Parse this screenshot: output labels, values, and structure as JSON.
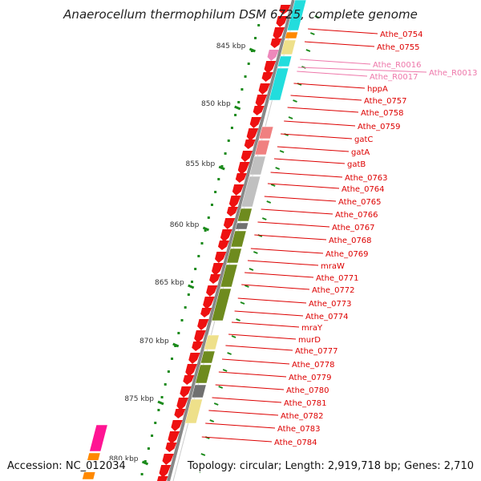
{
  "title": "Anaerocellum thermophilum DSM 6725, complete genome",
  "footer": {
    "accession_label": "Accession:",
    "accession": "NC_012034",
    "summary": "Topology: circular; Length: 2,919,718 bp; Genes: 2,710"
  },
  "colors": {
    "gene": "#ee1111",
    "rna": "#ee88bb",
    "label_gene": "#dd0000",
    "label_rna": "#ee77aa",
    "ruler": "#1a8a1a",
    "backbone": "#888888",
    "cog_green": "#6e8b1e",
    "cog_cyan": "#22dddd",
    "cog_pink": "#f08080",
    "cog_grey": "#c0c0c0",
    "cog_darkgrey": "#707070",
    "cog_khaki": "#eee08a",
    "cog_orange": "#ff8800",
    "cog_magenta": "#ff1493"
  },
  "ruler_ticks": [
    {
      "label": "845 kbp"
    },
    {
      "label": "850 kbp"
    },
    {
      "label": "855 kbp"
    },
    {
      "label": "860 kbp"
    },
    {
      "label": "865 kbp"
    },
    {
      "label": "870 kbp"
    },
    {
      "label": "875 kbp"
    },
    {
      "label": "880 kbp"
    }
  ],
  "gene_labels": [
    {
      "text": "Athe_0754",
      "kind": "gene"
    },
    {
      "text": "Athe_0755",
      "kind": "gene"
    },
    {
      "text": "Athe_R0016",
      "kind": "rna"
    },
    {
      "text": "Athe_R0013",
      "kind": "rna"
    },
    {
      "text": "Athe_R0017",
      "kind": "rna"
    },
    {
      "text": "hppA",
      "kind": "gene"
    },
    {
      "text": "Athe_0757",
      "kind": "gene"
    },
    {
      "text": "Athe_0758",
      "kind": "gene"
    },
    {
      "text": "Athe_0759",
      "kind": "gene"
    },
    {
      "text": "gatC",
      "kind": "gene"
    },
    {
      "text": "gatA",
      "kind": "gene"
    },
    {
      "text": "gatB",
      "kind": "gene"
    },
    {
      "text": "Athe_0763",
      "kind": "gene"
    },
    {
      "text": "Athe_0764",
      "kind": "gene"
    },
    {
      "text": "Athe_0765",
      "kind": "gene"
    },
    {
      "text": "Athe_0766",
      "kind": "gene"
    },
    {
      "text": "Athe_0767",
      "kind": "gene"
    },
    {
      "text": "Athe_0768",
      "kind": "gene"
    },
    {
      "text": "Athe_0769",
      "kind": "gene"
    },
    {
      "text": "mraW",
      "kind": "gene"
    },
    {
      "text": "Athe_0771",
      "kind": "gene"
    },
    {
      "text": "Athe_0772",
      "kind": "gene"
    },
    {
      "text": "Athe_0773",
      "kind": "gene"
    },
    {
      "text": "Athe_0774",
      "kind": "gene"
    },
    {
      "text": "mraY",
      "kind": "gene"
    },
    {
      "text": "murD",
      "kind": "gene"
    },
    {
      "text": "Athe_0777",
      "kind": "gene"
    },
    {
      "text": "Athe_0778",
      "kind": "gene"
    },
    {
      "text": "Athe_0779",
      "kind": "gene"
    },
    {
      "text": "Athe_0780",
      "kind": "gene"
    },
    {
      "text": "Athe_0781",
      "kind": "gene"
    },
    {
      "text": "Athe_0782",
      "kind": "gene"
    },
    {
      "text": "Athe_0783",
      "kind": "gene"
    },
    {
      "text": "Athe_0784",
      "kind": "gene"
    }
  ],
  "cog_blocks": [
    {
      "color": "cog_cyan"
    },
    {
      "color": "cog_orange"
    },
    {
      "color": "cog_khaki"
    },
    {
      "color": "cog_cyan"
    },
    {
      "color": "cog_cyan"
    },
    {
      "color": "cog_pink"
    },
    {
      "color": "cog_pink"
    },
    {
      "color": "cog_grey"
    },
    {
      "color": "cog_grey"
    },
    {
      "color": "cog_green"
    },
    {
      "color": "cog_darkgrey"
    },
    {
      "color": "cog_green"
    },
    {
      "color": "cog_green"
    },
    {
      "color": "cog_green"
    },
    {
      "color": "cog_green"
    },
    {
      "color": "cog_khaki"
    },
    {
      "color": "cog_green"
    },
    {
      "color": "cog_green"
    },
    {
      "color": "cog_darkgrey"
    },
    {
      "color": "cog_khaki"
    },
    {
      "color": "cog_magenta"
    },
    {
      "color": "cog_orange"
    },
    {
      "color": "cog_orange"
    }
  ]
}
